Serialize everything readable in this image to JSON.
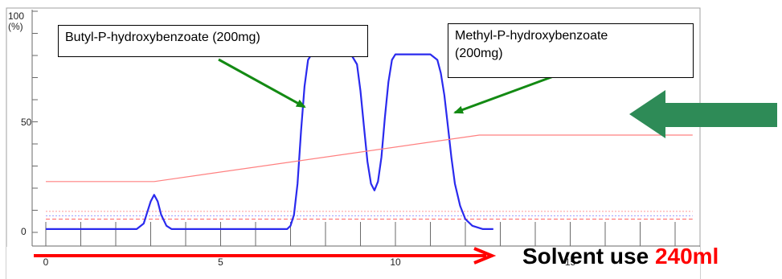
{
  "chart_data": {
    "type": "line",
    "ylabel_top": "100",
    "ylabel_unit": "(%)",
    "xlim": [
      0,
      18.5
    ],
    "ylim": [
      0,
      100
    ],
    "x_ticks": [
      0,
      5,
      10,
      15
    ],
    "y_ticks": [
      0,
      50
    ],
    "series": [
      {
        "color": "#2a2aee",
        "points": [
          [
            0,
            1.5
          ],
          [
            2.6,
            1.5
          ],
          [
            2.8,
            4
          ],
          [
            2.9,
            9
          ],
          [
            3.0,
            14
          ],
          [
            3.1,
            17
          ],
          [
            3.2,
            14
          ],
          [
            3.3,
            8
          ],
          [
            3.45,
            3
          ],
          [
            3.6,
            1.5
          ],
          [
            6.9,
            1.5
          ],
          [
            7.0,
            3
          ],
          [
            7.1,
            8
          ],
          [
            7.2,
            22
          ],
          [
            7.3,
            46
          ],
          [
            7.4,
            66
          ],
          [
            7.5,
            78
          ],
          [
            7.6,
            80.5
          ],
          [
            8.5,
            80.5
          ],
          [
            8.75,
            80
          ],
          [
            8.9,
            76
          ],
          [
            9.0,
            64
          ],
          [
            9.1,
            48
          ],
          [
            9.2,
            32
          ],
          [
            9.3,
            22
          ],
          [
            9.4,
            19
          ],
          [
            9.5,
            23
          ],
          [
            9.6,
            34
          ],
          [
            9.7,
            52
          ],
          [
            9.8,
            68
          ],
          [
            9.9,
            78
          ],
          [
            10.0,
            80.5
          ],
          [
            11.0,
            80.5
          ],
          [
            11.2,
            78
          ],
          [
            11.3,
            72
          ],
          [
            11.4,
            62
          ],
          [
            11.5,
            48
          ],
          [
            11.6,
            34
          ],
          [
            11.7,
            22
          ],
          [
            11.85,
            12
          ],
          [
            12.0,
            6
          ],
          [
            12.2,
            3
          ],
          [
            12.5,
            1.5
          ],
          [
            12.8,
            1.5
          ]
        ]
      },
      {
        "color": "#ff8080",
        "points": [
          [
            0,
            23
          ],
          [
            3.1,
            23
          ],
          [
            12.4,
            44
          ],
          [
            18.5,
            44
          ]
        ]
      }
    ],
    "reference_lines": [
      {
        "y": 9.5,
        "color": "#ff9999",
        "style": "dotted"
      },
      {
        "y": 7.5,
        "color": "#9999ff",
        "style": "dotted"
      },
      {
        "y": 6.0,
        "color": "#ff6666",
        "style": "dashed"
      }
    ],
    "annotations": [
      {
        "text": "Butyl-P-hydroxybenzoate (200mg)"
      },
      {
        "text": "Methyl-P-hydroxybenzoate\n(200mg)"
      }
    ]
  },
  "callouts": {
    "butyl": "Butyl-P-hydroxybenzoate (200mg)",
    "methyl_line1": "Methyl-P-hydroxybenzoate",
    "methyl_line2": "(200mg)"
  },
  "solvent": {
    "label": "Solvent use ",
    "value": "240ml"
  },
  "colors": {
    "green_arrows": "#138a13",
    "big_arrow": "#2e8b57",
    "red_arrow": "#ff0000",
    "axis": "#6a6a6a"
  }
}
